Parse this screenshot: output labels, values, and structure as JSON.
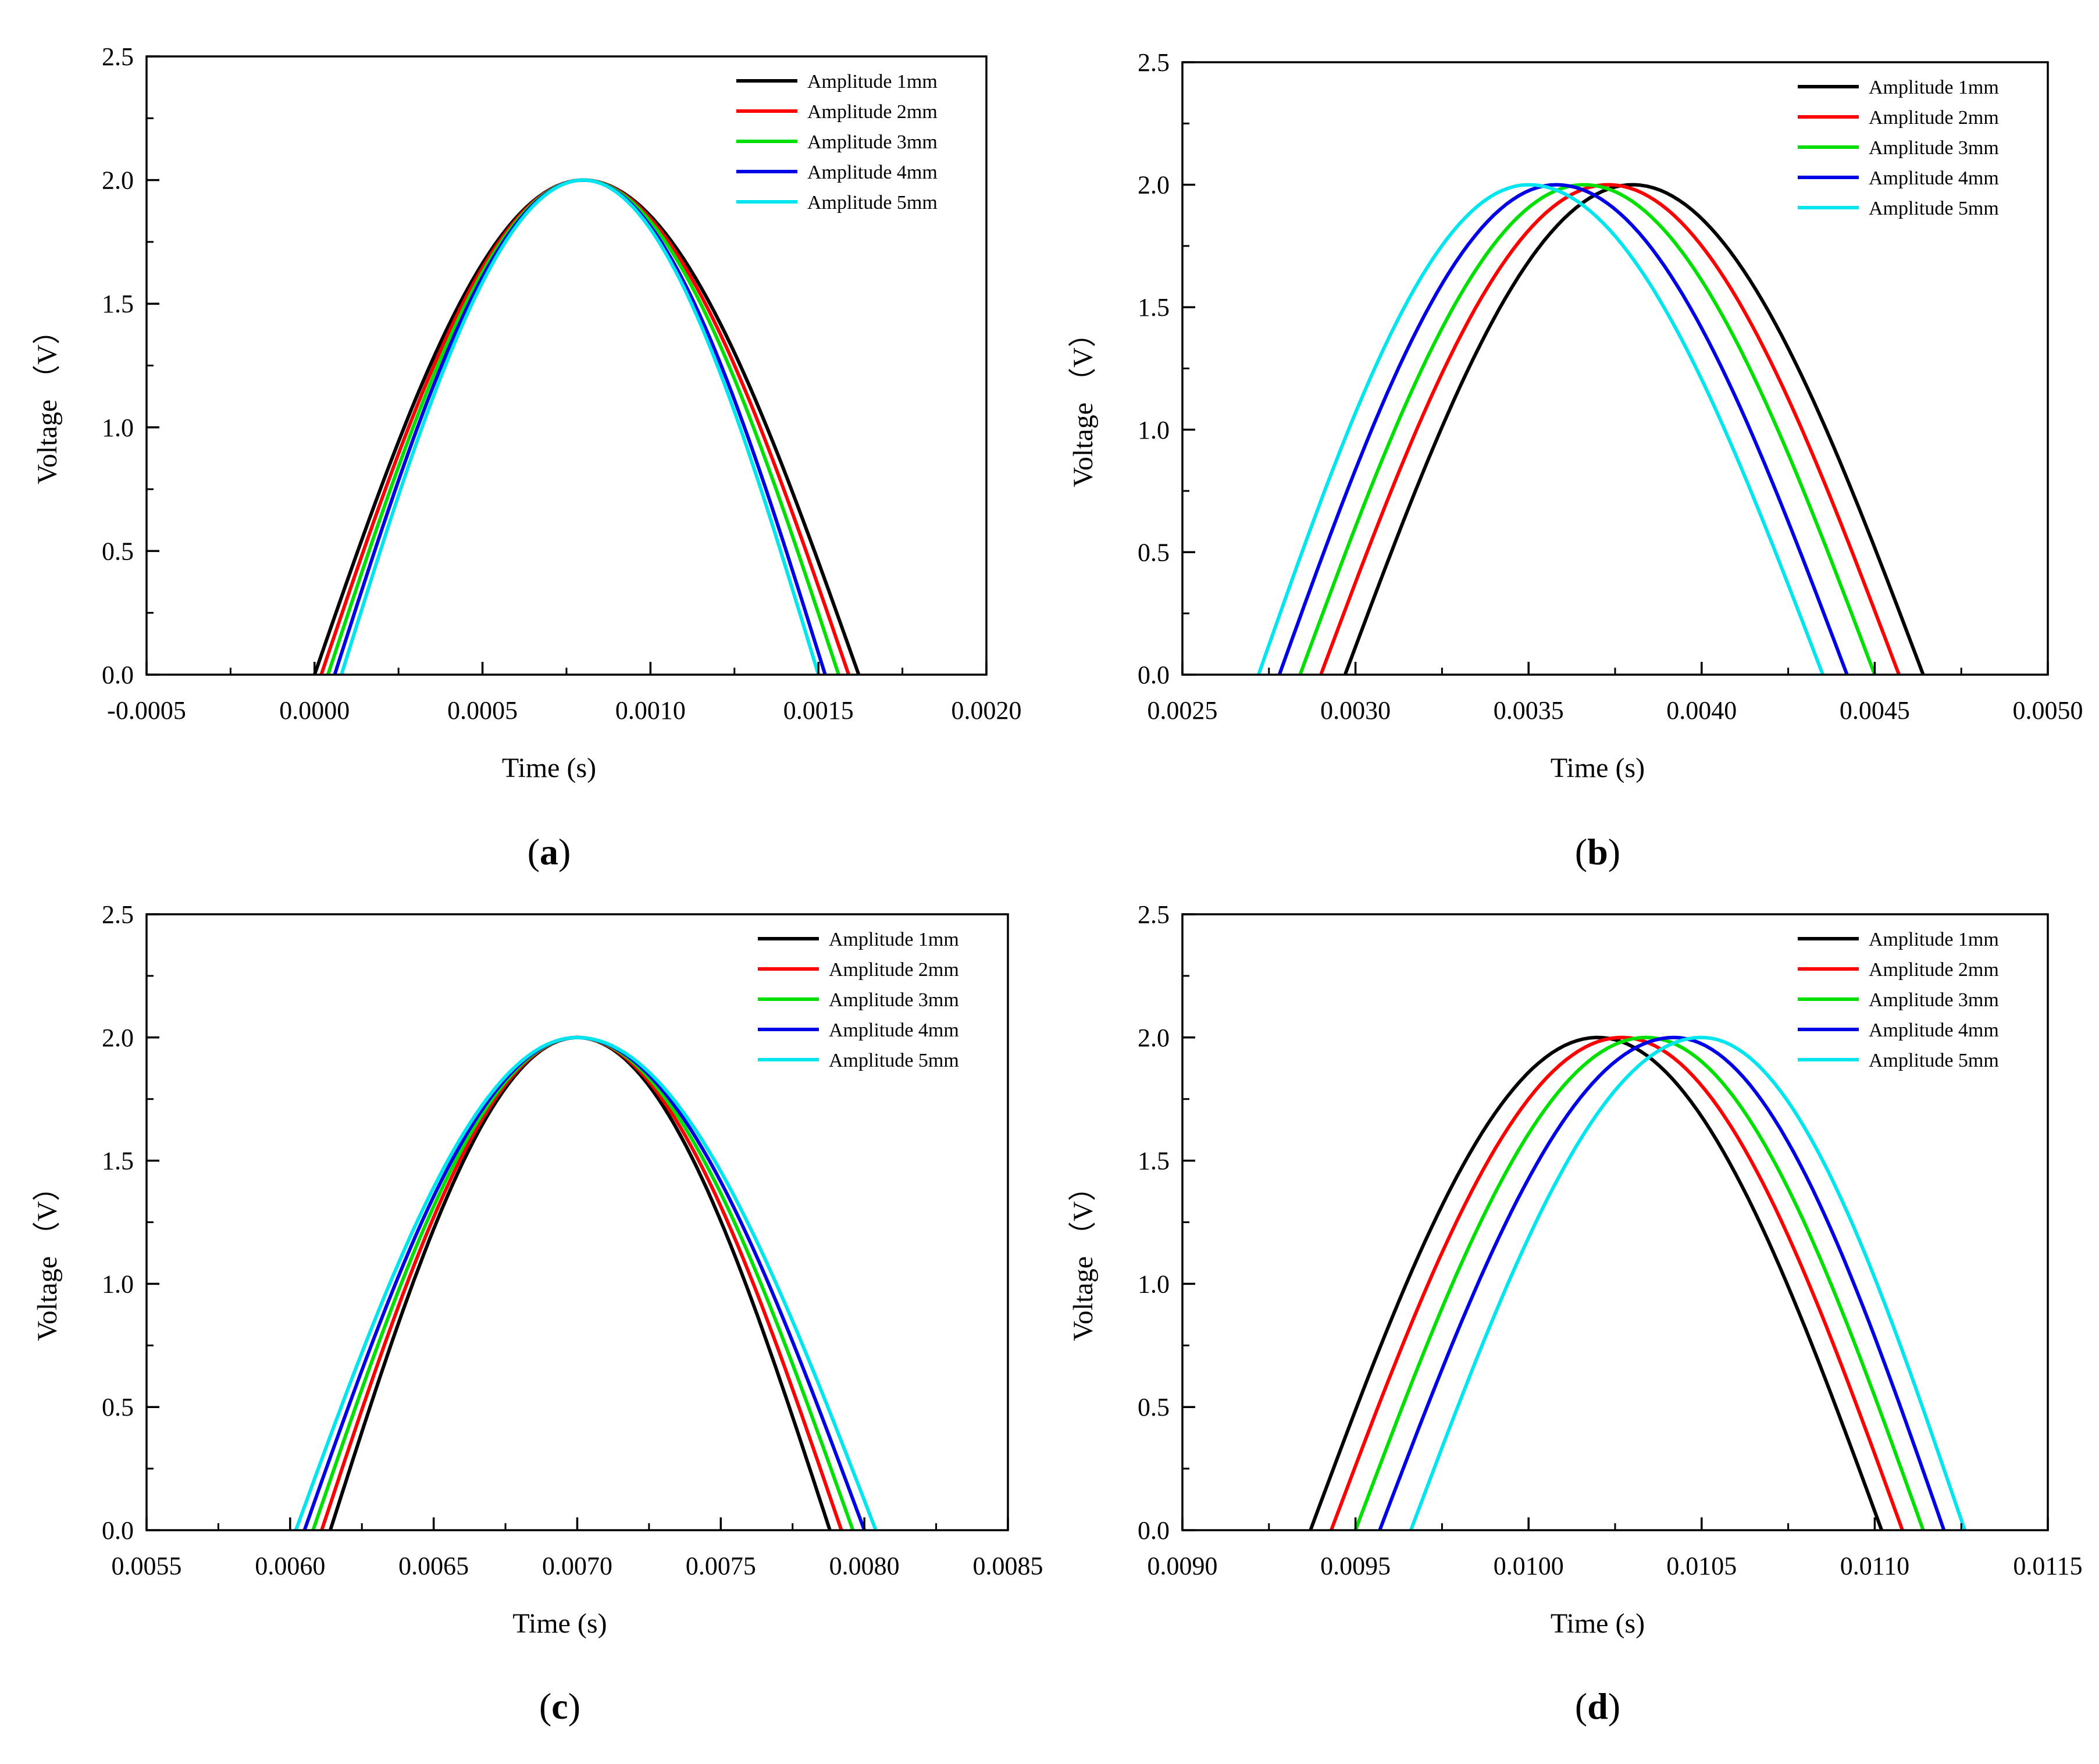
{
  "colors": {
    "series": [
      "#000000",
      "#ff0000",
      "#00e000",
      "#0000e6",
      "#00e5ee"
    ]
  },
  "chart_data": [
    {
      "type": "line",
      "panel": "a",
      "panel_label": {
        "open": "(",
        "letter": "a",
        "close": ")"
      },
      "xlabel": "Time (s)",
      "ylabel": "Voltage （V）",
      "xlim": [
        -0.0005,
        0.002
      ],
      "ylim": [
        0.0,
        2.5
      ],
      "xticks": [
        -0.0005,
        0.0,
        0.0005,
        0.001,
        0.0015,
        0.002
      ],
      "xtick_labels": [
        "-0.0005",
        "0.0000",
        "0.0005",
        "0.0010",
        "0.0015",
        "0.0020"
      ],
      "yticks": [
        0.0,
        0.5,
        1.0,
        1.5,
        2.0,
        2.5
      ],
      "ytick_labels": [
        "0.0",
        "0.5",
        "1.0",
        "1.5",
        "2.0",
        "2.5"
      ],
      "legend_position": "top-right",
      "series": [
        {
          "name": "Amplitude 1mm",
          "start": 0.0,
          "peak": 0.0008,
          "end": 0.00162,
          "peak_value": 2.0
        },
        {
          "name": "Amplitude 2mm",
          "start": 2e-05,
          "peak": 0.0008,
          "end": 0.00159,
          "peak_value": 2.0
        },
        {
          "name": "Amplitude 3mm",
          "start": 4e-05,
          "peak": 0.0008,
          "end": 0.00156,
          "peak_value": 2.0
        },
        {
          "name": "Amplitude 4mm",
          "start": 6e-05,
          "peak": 0.0008,
          "end": 0.00152,
          "peak_value": 2.0
        },
        {
          "name": "Amplitude 5mm",
          "start": 8e-05,
          "peak": 0.0008,
          "end": 0.0015,
          "peak_value": 2.0
        }
      ]
    },
    {
      "type": "line",
      "panel": "b",
      "panel_label": {
        "open": "(",
        "letter": "b",
        "close": ")"
      },
      "xlabel": "Time (s)",
      "ylabel": "Voltage （V）",
      "xlim": [
        0.0025,
        0.005
      ],
      "ylim": [
        0.0,
        2.5
      ],
      "xticks": [
        0.0025,
        0.003,
        0.0035,
        0.004,
        0.0045,
        0.005
      ],
      "xtick_labels": [
        "0.0025",
        "0.0030",
        "0.0035",
        "0.0040",
        "0.0045",
        "0.0050"
      ],
      "yticks": [
        0.0,
        0.5,
        1.0,
        1.5,
        2.0,
        2.5
      ],
      "ytick_labels": [
        "0.0",
        "0.5",
        "1.0",
        "1.5",
        "2.0",
        "2.5"
      ],
      "legend_position": "top-right",
      "series": [
        {
          "name": "Amplitude 1mm",
          "start": 0.00297,
          "peak": 0.0038,
          "end": 0.00464,
          "peak_value": 2.0
        },
        {
          "name": "Amplitude 2mm",
          "start": 0.0029,
          "peak": 0.00373,
          "end": 0.00457,
          "peak_value": 2.0
        },
        {
          "name": "Amplitude 3mm",
          "start": 0.00284,
          "peak": 0.00366,
          "end": 0.0045,
          "peak_value": 2.0
        },
        {
          "name": "Amplitude 4mm",
          "start": 0.00278,
          "peak": 0.00358,
          "end": 0.00442,
          "peak_value": 2.0
        },
        {
          "name": "Amplitude 5mm",
          "start": 0.00272,
          "peak": 0.0035,
          "end": 0.00435,
          "peak_value": 2.0
        }
      ]
    },
    {
      "type": "line",
      "panel": "c",
      "panel_label": {
        "open": "(",
        "letter": "c",
        "close": ")"
      },
      "xlabel": "Time (s)",
      "ylabel": "Voltage （V）",
      "xlim": [
        0.0055,
        0.0085
      ],
      "ylim": [
        0.0,
        2.5
      ],
      "xticks": [
        0.0055,
        0.006,
        0.0065,
        0.007,
        0.0075,
        0.008,
        0.0085
      ],
      "xtick_labels": [
        "0.0055",
        "0.0060",
        "0.0065",
        "0.0070",
        "0.0075",
        "0.0080",
        "0.0085"
      ],
      "yticks": [
        0.0,
        0.5,
        1.0,
        1.5,
        2.0,
        2.5
      ],
      "ytick_labels": [
        "0.0",
        "0.5",
        "1.0",
        "1.5",
        "2.0",
        "2.5"
      ],
      "legend_position": "top-right",
      "series": [
        {
          "name": "Amplitude 1mm",
          "start": 0.00614,
          "peak": 0.007,
          "end": 0.00788,
          "peak_value": 2.0
        },
        {
          "name": "Amplitude 2mm",
          "start": 0.00611,
          "peak": 0.007,
          "end": 0.00792,
          "peak_value": 2.0
        },
        {
          "name": "Amplitude 3mm",
          "start": 0.00608,
          "peak": 0.007,
          "end": 0.00796,
          "peak_value": 2.0
        },
        {
          "name": "Amplitude 4mm",
          "start": 0.00605,
          "peak": 0.007,
          "end": 0.008,
          "peak_value": 2.0
        },
        {
          "name": "Amplitude 5mm",
          "start": 0.00602,
          "peak": 0.007,
          "end": 0.00804,
          "peak_value": 2.0
        }
      ]
    },
    {
      "type": "line",
      "panel": "d",
      "panel_label": {
        "open": "(",
        "letter": "d",
        "close": ")"
      },
      "xlabel": "Time (s)",
      "ylabel": "Voltage （V）",
      "xlim": [
        0.009,
        0.0115
      ],
      "ylim": [
        0.0,
        2.5
      ],
      "xticks": [
        0.009,
        0.0095,
        0.01,
        0.0105,
        0.011,
        0.0115
      ],
      "xtick_labels": [
        "0.0090",
        "0.0095",
        "0.0100",
        "0.0105",
        "0.0110",
        "0.0115"
      ],
      "yticks": [
        0.0,
        0.5,
        1.0,
        1.5,
        2.0,
        2.5
      ],
      "ytick_labels": [
        "0.0",
        "0.5",
        "1.0",
        "1.5",
        "2.0",
        "2.5"
      ],
      "legend_position": "top-right",
      "series": [
        {
          "name": "Amplitude 1mm",
          "start": 0.00937,
          "peak": 0.0102,
          "end": 0.01102,
          "peak_value": 2.0
        },
        {
          "name": "Amplitude 2mm",
          "start": 0.00943,
          "peak": 0.01027,
          "end": 0.01108,
          "peak_value": 2.0
        },
        {
          "name": "Amplitude 3mm",
          "start": 0.0095,
          "peak": 0.01034,
          "end": 0.01114,
          "peak_value": 2.0
        },
        {
          "name": "Amplitude 4mm",
          "start": 0.00957,
          "peak": 0.01042,
          "end": 0.0112,
          "peak_value": 2.0
        },
        {
          "name": "Amplitude 5mm",
          "start": 0.00966,
          "peak": 0.0105,
          "end": 0.01126,
          "peak_value": 2.0
        }
      ]
    }
  ]
}
